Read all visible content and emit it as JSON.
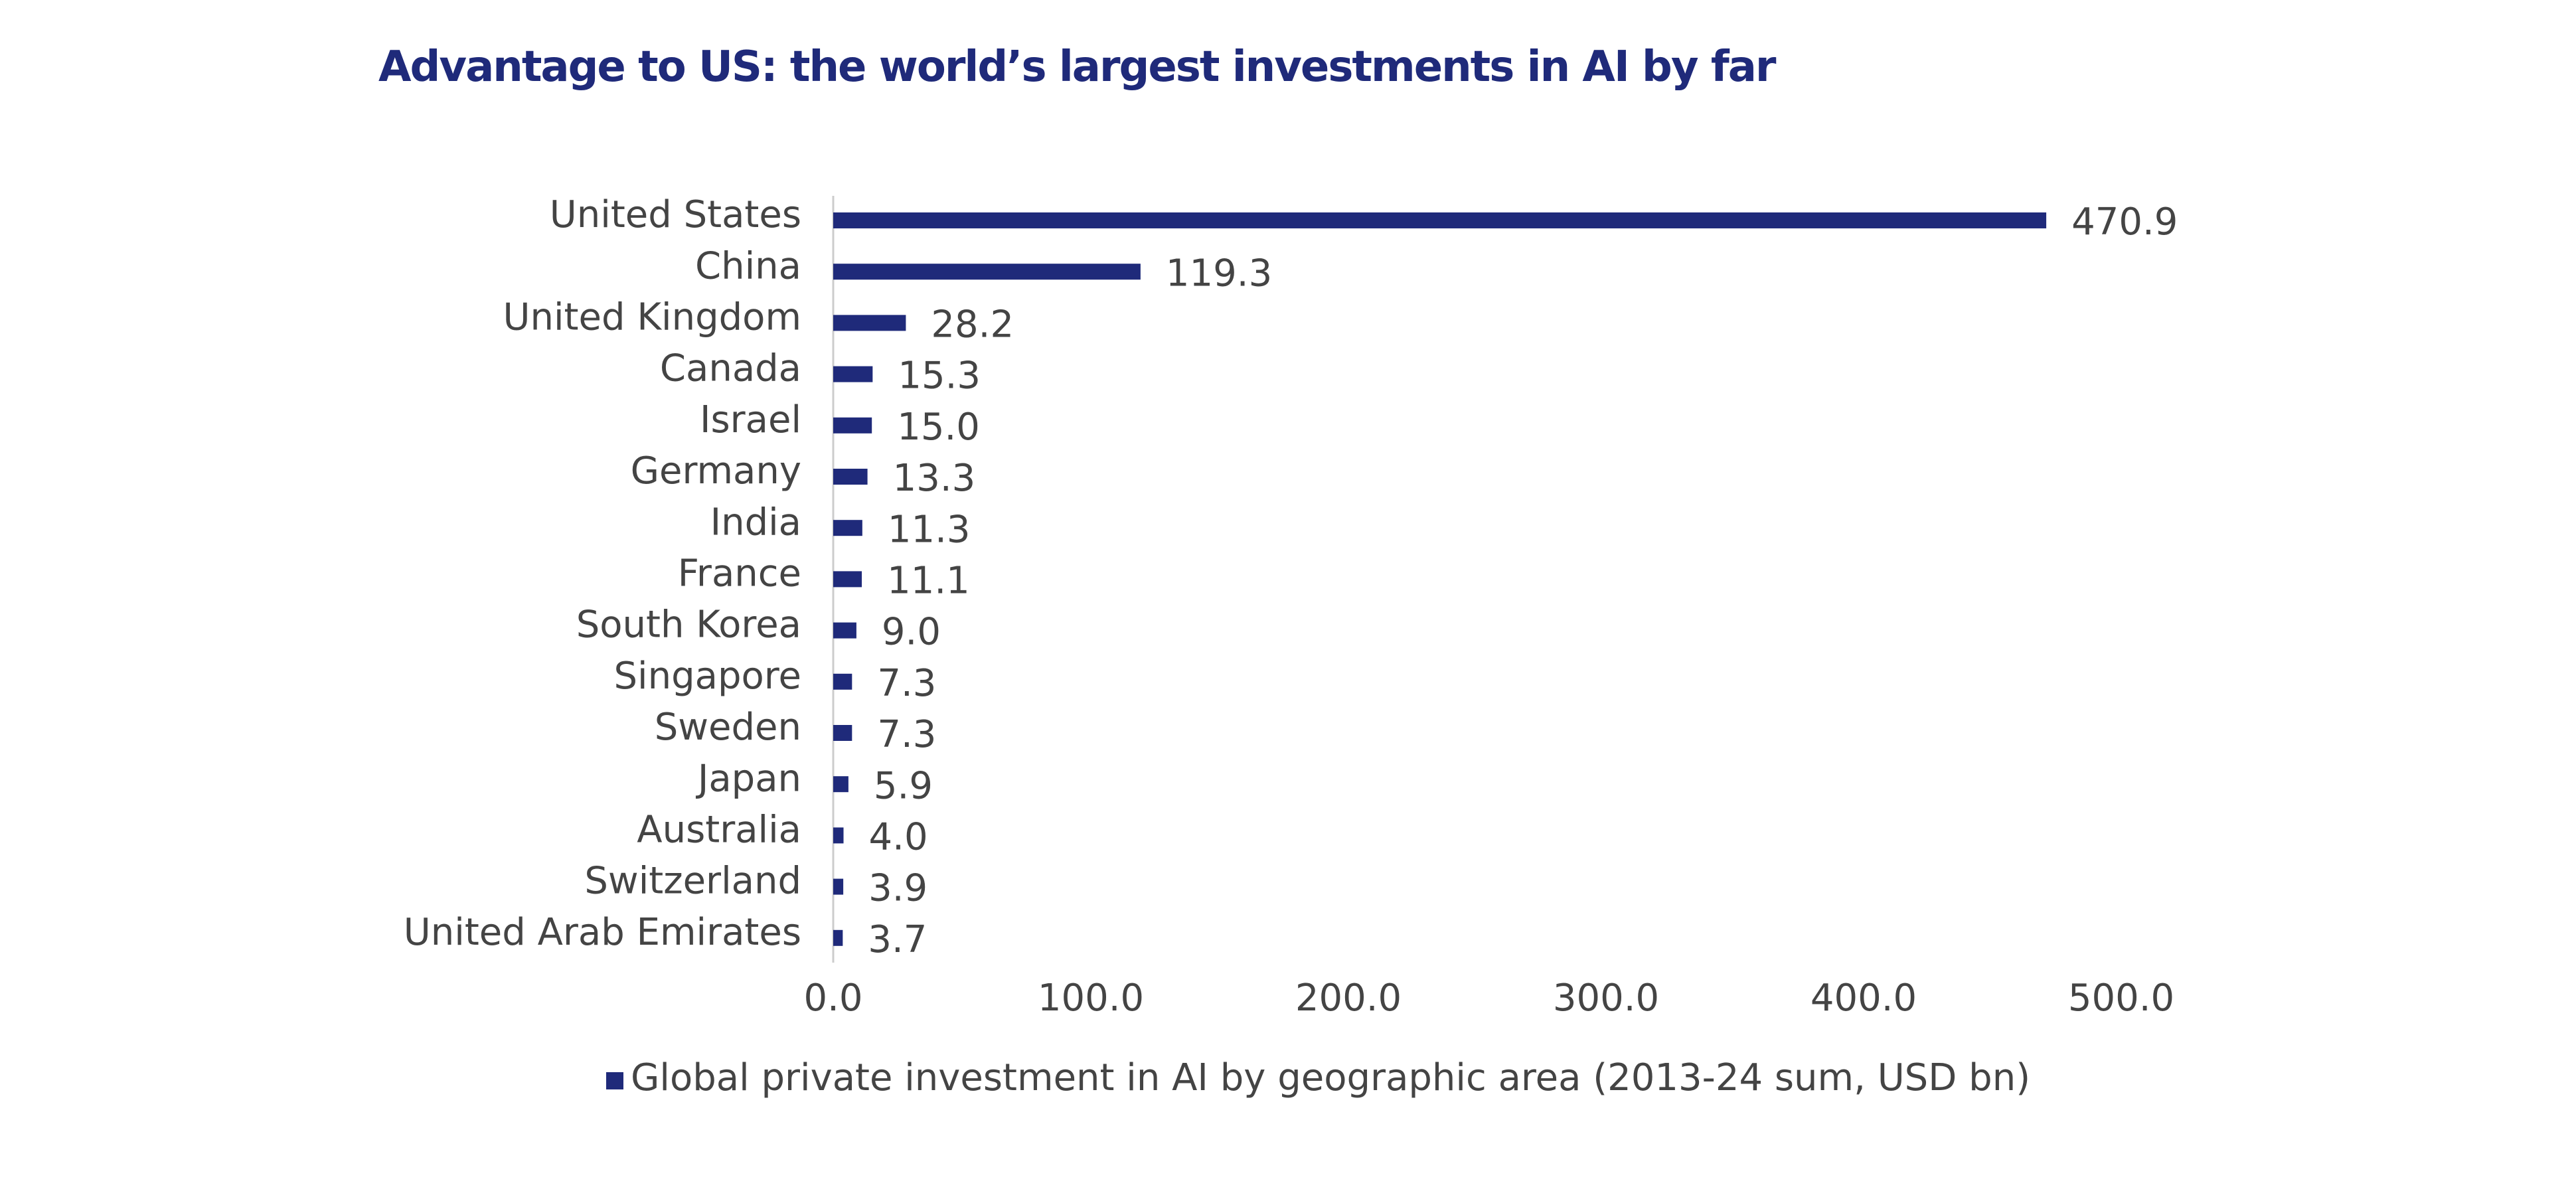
{
  "chart_data": {
    "type": "bar",
    "orientation": "horizontal",
    "title": "Advantage to US: the world’s largest investments in AI by far",
    "categories": [
      "United States",
      "China",
      "United Kingdom",
      "Canada",
      "Israel",
      "Germany",
      "India",
      "France",
      "South Korea",
      "Singapore",
      "Sweden",
      "Japan",
      "Australia",
      "Switzerland",
      "United Arab Emirates"
    ],
    "series": [
      {
        "name": "Global private investment in AI by geographic area (2013-24 sum, USD bn)",
        "color": "#1f2a7a",
        "values": [
          470.9,
          119.3,
          28.2,
          15.3,
          15.0,
          13.3,
          11.3,
          11.1,
          9.0,
          7.3,
          7.3,
          5.9,
          4.0,
          3.9,
          3.7
        ],
        "value_labels": [
          "470.9",
          "119.3",
          "28.2",
          "15.3",
          "15.0",
          "13.3",
          "11.3",
          "11.1",
          "9.0",
          "7.3",
          "7.3",
          "5.9",
          "4.0",
          "3.9",
          "3.7"
        ]
      }
    ],
    "xlim": [
      0,
      500
    ],
    "xticks": [
      {
        "value": 0,
        "label": "0.0"
      },
      {
        "value": 100,
        "label": "100.0"
      },
      {
        "value": 200,
        "label": "200.0"
      },
      {
        "value": 300,
        "label": "300.0"
      },
      {
        "value": 400,
        "label": "400.0"
      },
      {
        "value": 500,
        "label": "500.0"
      }
    ],
    "grid": false,
    "legend": "bottom"
  }
}
